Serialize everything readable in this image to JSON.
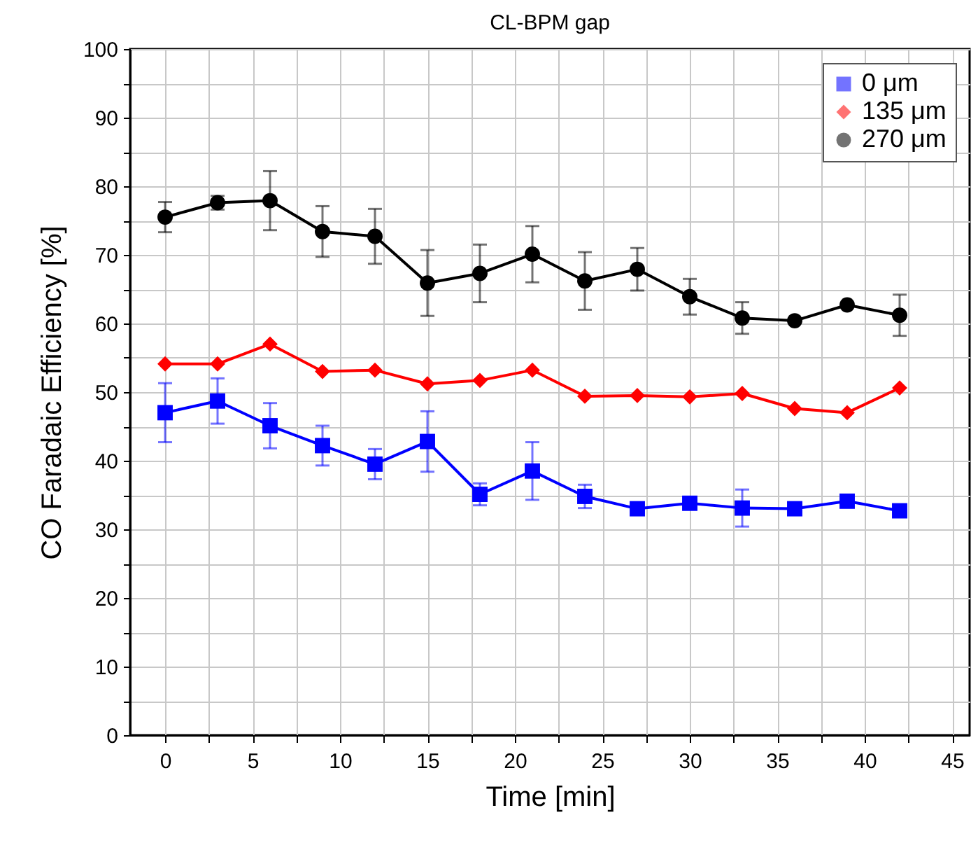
{
  "chart_data": {
    "type": "line",
    "title": "CL-BPM gap",
    "xlabel": "Time [min]",
    "ylabel": "CO Faradaic Efficiency [%]",
    "x": [
      0,
      3,
      6,
      9,
      12,
      15,
      18,
      21,
      24,
      27,
      30,
      33,
      36,
      39,
      42
    ],
    "series": [
      {
        "name": "0 μm",
        "color": "#0000ff",
        "marker": "square",
        "values": [
          47.0,
          48.7,
          45.1,
          42.2,
          39.5,
          42.8,
          35.1,
          38.5,
          34.8,
          33.0,
          33.8,
          33.1,
          33.0,
          34.1,
          32.7
        ],
        "errors": [
          4.3,
          3.3,
          3.3,
          2.9,
          2.2,
          4.4,
          1.6,
          4.2,
          1.7,
          null,
          null,
          2.7,
          null,
          null,
          null
        ]
      },
      {
        "name": "135 μm",
        "color": "#ff0000",
        "marker": "diamond",
        "values": [
          54.1,
          54.1,
          57.0,
          53.0,
          53.2,
          51.2,
          51.7,
          53.2,
          49.4,
          49.5,
          49.3,
          49.8,
          47.6,
          47.0,
          50.6
        ]
      },
      {
        "name": "270 μm",
        "color": "#000000",
        "marker": "circle",
        "values": [
          75.5,
          77.6,
          77.9,
          73.4,
          72.7,
          65.9,
          67.3,
          70.1,
          66.2,
          67.9,
          63.9,
          60.8,
          60.4,
          62.7,
          61.2
        ],
        "errors": [
          2.2,
          1.0,
          4.3,
          3.7,
          4.0,
          4.8,
          4.2,
          4.1,
          4.2,
          3.1,
          2.6,
          2.3,
          null,
          null,
          3.0
        ]
      }
    ],
    "xlim": [
      -2,
      46
    ],
    "ylim": [
      0,
      100
    ],
    "xticks": [
      0,
      {
        "value": 2.5,
        "label": null
      },
      5,
      {
        "value": 7.5,
        "label": null
      },
      10,
      {
        "value": 12.5,
        "label": null
      },
      15,
      {
        "value": 17.5,
        "label": null
      },
      20,
      {
        "value": 22.5,
        "label": null
      },
      25,
      {
        "value": 27.5,
        "label": null
      },
      30,
      {
        "value": 32.5,
        "label": null
      },
      35,
      {
        "value": 37.5,
        "label": null
      },
      40,
      {
        "value": 42.5,
        "label": null
      },
      45
    ],
    "yticks": [
      0,
      {
        "value": 5,
        "label": null
      },
      10,
      {
        "value": 15,
        "label": null
      },
      20,
      {
        "value": 25,
        "label": null
      },
      30,
      {
        "value": 35,
        "label": null
      },
      40,
      {
        "value": 45,
        "label": null
      },
      50,
      {
        "value": 55,
        "label": null
      },
      60,
      {
        "value": 65,
        "label": null
      },
      70,
      {
        "value": 75,
        "label": null
      },
      80,
      {
        "value": 85,
        "label": null
      },
      90,
      {
        "value": 95,
        "label": null
      },
      100
    ],
    "grid": true,
    "legend": "top right",
    "line_style": "solid"
  }
}
